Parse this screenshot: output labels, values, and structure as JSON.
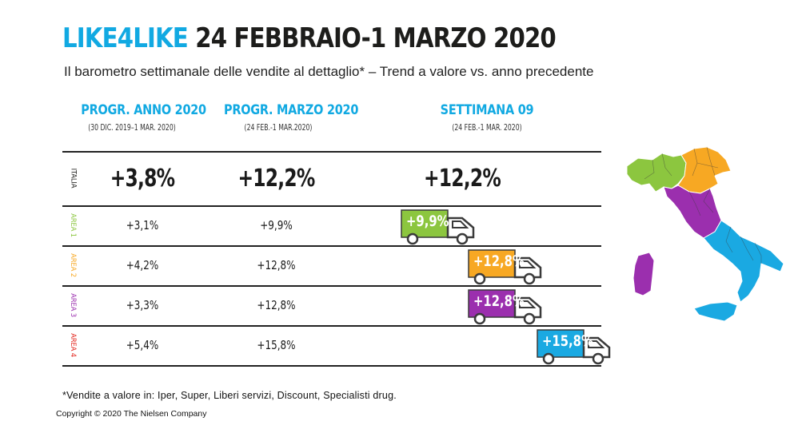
{
  "title": {
    "brand": "LIKE4LIKE",
    "rest": " 24 FEBBRAIO-1 MARZO 2020"
  },
  "subtitle": "Il barometro settimanale delle vendite al dettaglio* – Trend a valore vs. anno precedente",
  "columns": [
    {
      "label": "PROGR. ANNO 2020",
      "sublabel": "(30 DIC. 2019–1 MAR. 2020)"
    },
    {
      "label": "PROGR. MARZO 2020",
      "sublabel": "(24 FEB.-1 MAR.2020)"
    },
    {
      "label": "SETTIMANA 09",
      "sublabel": "(24 FEB.-1 MAR. 2020)"
    }
  ],
  "chart_data": {
    "type": "table",
    "title": "LIKE4LIKE 24 FEBBRAIO-1 MARZO 2020",
    "subtitle": "Il barometro settimanale delle vendite al dettaglio* – Trend a valore vs. anno precedente",
    "columns": [
      "PROGR. ANNO 2020",
      "PROGR. MARZO 2020",
      "SETTIMANA 09"
    ],
    "rows": [
      {
        "label": "ITALIA",
        "progr_anno": "+3,8%",
        "progr_marzo": "+12,2%",
        "settimana": "+12,2%",
        "settimana_value": 12.2,
        "color": "#1d1d1b"
      },
      {
        "label": "AREA 1",
        "progr_anno": "+3,1%",
        "progr_marzo": "+9,9%",
        "settimana": "+9,9%",
        "settimana_value": 9.9,
        "color": "#8cc63f"
      },
      {
        "label": "AREA 2",
        "progr_anno": "+4,2%",
        "progr_marzo": "+12,8%",
        "settimana": "+12,8%",
        "settimana_value": 12.8,
        "color": "#f7a823"
      },
      {
        "label": "AREA 3",
        "progr_anno": "+3,3%",
        "progr_marzo": "+12,8%",
        "settimana": "+12,8%",
        "settimana_value": 12.8,
        "color": "#9b2fae"
      },
      {
        "label": "AREA 4",
        "progr_anno": "+5,4%",
        "progr_marzo": "+15,8%",
        "settimana": "+15,8%",
        "settimana_value": 15.8,
        "color": "#e2231a",
        "truck_color": "#1aa9e2"
      }
    ]
  },
  "icons": {
    "truck": "truck-icon",
    "map": "italy-map-icon"
  },
  "footnote": "*Vendite a valore in: Iper, Super, Liberi servizi, Discount, Specialisti drug.",
  "copyright": "Copyright © 2020 The Nielsen Company"
}
